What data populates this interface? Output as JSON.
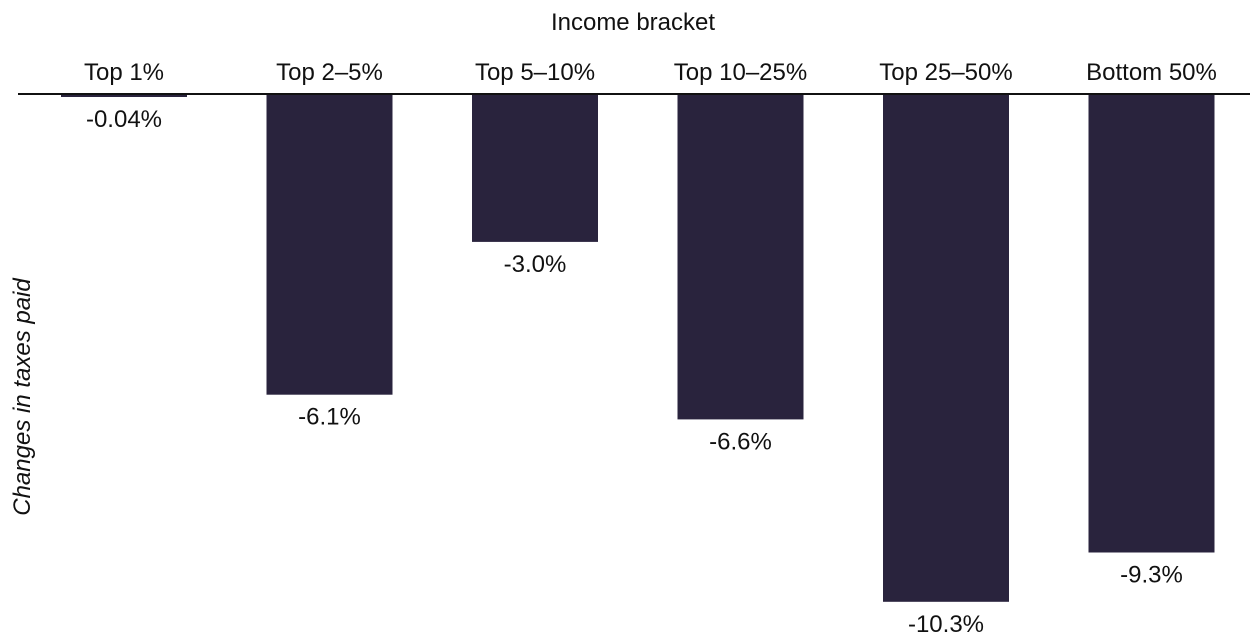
{
  "chart_data": {
    "type": "bar",
    "title": "",
    "xlabel": "Income bracket",
    "ylabel": "Changes in taxes paid",
    "categories": [
      "Top 1%",
      "Top 2–5%",
      "Top 5–10%",
      "Top 10–25%",
      "Top 25–50%",
      "Bottom 50%"
    ],
    "values": [
      -0.04,
      -6.1,
      -3.0,
      -6.6,
      -10.3,
      -9.3
    ],
    "value_labels": [
      "-0.04%",
      "-6.1%",
      "-3.0%",
      "-6.6%",
      "-10.3%",
      "-9.3%"
    ],
    "ylim": [
      -10.3,
      0
    ],
    "grid": false,
    "legend": "none",
    "x_axis_position": "top",
    "colors": {
      "bar": "#29233d",
      "axis": "#111111",
      "text": "#111111"
    }
  }
}
